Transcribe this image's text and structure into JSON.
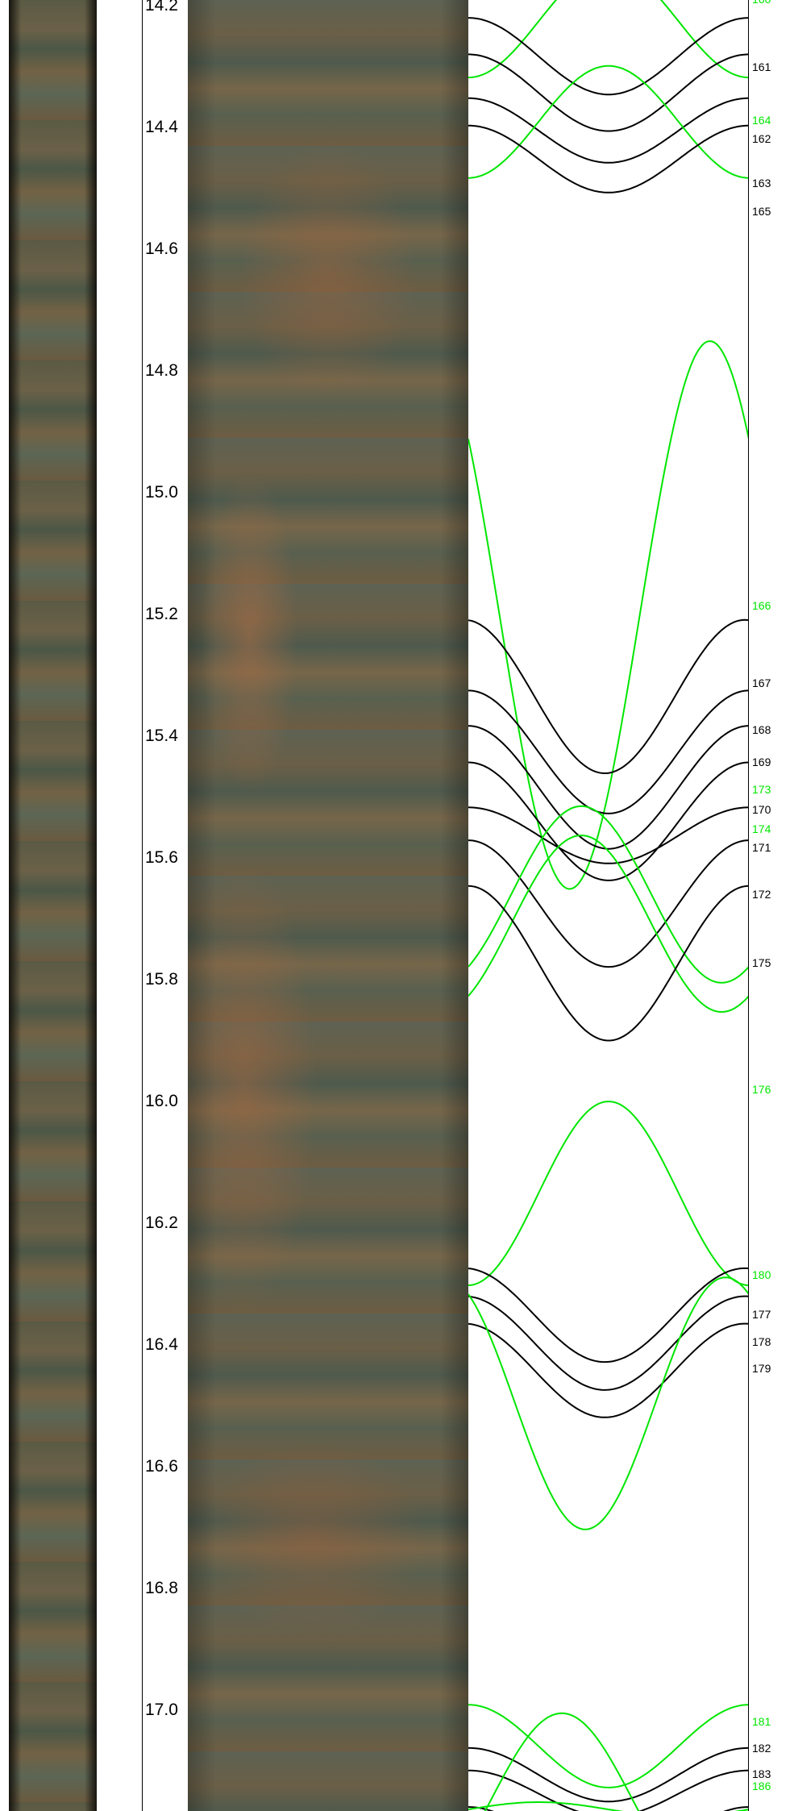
{
  "depth_axis": {
    "ticks": [
      "14.2",
      "14.4",
      "14.6",
      "14.8",
      "15.0",
      "15.2",
      "15.4",
      "15.6",
      "15.8",
      "16.0",
      "16.2",
      "16.4",
      "16.6",
      "16.8",
      "17.0"
    ]
  },
  "colors": {
    "black_plane": "#000000",
    "green_plane": "#00e600"
  },
  "core_images": [
    {
      "name": "unrolled-core-scan-narrow"
    },
    {
      "name": "unrolled-core-scan-wide"
    }
  ],
  "chart_data": {
    "type": "line",
    "x": {
      "label": "",
      "range": [
        0,
        360
      ]
    },
    "y": {
      "label": "",
      "unit": "m",
      "range": [
        14.2,
        17.16
      ],
      "inverted": true
    },
    "planes": [
      {
        "id": "160",
        "color": "green",
        "depth": 14.226,
        "amplitude": 0.092,
        "phase": 0
      },
      {
        "id": "161",
        "color": "black",
        "depth": 14.283,
        "amplitude": 0.063,
        "phase": 180
      },
      {
        "id": "162",
        "color": "black",
        "depth": 14.343,
        "amplitude": 0.063,
        "phase": 180
      },
      {
        "id": "163",
        "color": "black",
        "depth": 14.405,
        "amplitude": 0.053,
        "phase": 180
      },
      {
        "id": "164",
        "color": "green",
        "depth": 14.391,
        "amplitude": 0.092,
        "phase": 0
      },
      {
        "id": "165",
        "color": "black",
        "depth": 14.452,
        "amplitude": 0.055,
        "phase": 180
      },
      {
        "id": "166",
        "color": "green",
        "depth": 15.201,
        "amplitude": 0.45,
        "phase": 230
      },
      {
        "id": "167",
        "color": "black",
        "depth": 15.335,
        "amplitude": 0.126,
        "phase": 185
      },
      {
        "id": "168",
        "color": "black",
        "depth": 15.426,
        "amplitude": 0.101,
        "phase": 180
      },
      {
        "id": "169",
        "color": "black",
        "depth": 15.484,
        "amplitude": 0.101,
        "phase": 180
      },
      {
        "id": "170",
        "color": "black",
        "depth": 15.54,
        "amplitude": 0.097,
        "phase": 180
      },
      {
        "id": "171",
        "color": "black",
        "depth": 15.563,
        "amplitude": 0.046,
        "phase": 180
      },
      {
        "id": "172",
        "color": "black",
        "depth": 15.675,
        "amplitude": 0.104,
        "phase": 180
      },
      {
        "id": "173",
        "color": "green",
        "depth": 15.66,
        "amplitude": 0.145,
        "phase": 35
      },
      {
        "id": "174",
        "color": "green",
        "depth": 15.708,
        "amplitude": 0.145,
        "phase": 35
      },
      {
        "id": "175",
        "color": "black",
        "depth": 15.773,
        "amplitude": 0.127,
        "phase": 180
      },
      {
        "id": "176",
        "color": "green",
        "depth": 16.151,
        "amplitude": 0.151,
        "phase": 0
      },
      {
        "id": "177",
        "color": "black",
        "depth": 16.351,
        "amplitude": 0.077,
        "phase": 185
      },
      {
        "id": "178",
        "color": "black",
        "depth": 16.397,
        "amplitude": 0.077,
        "phase": 185
      },
      {
        "id": "179",
        "color": "black",
        "depth": 16.442,
        "amplitude": 0.077,
        "phase": 185
      },
      {
        "id": "180",
        "color": "green",
        "depth": 16.496,
        "amplitude": 0.207,
        "phase": 210
      },
      {
        "id": "181",
        "color": "green",
        "depth": 17.059,
        "amplitude": 0.068,
        "phase": 180
      },
      {
        "id": "182",
        "color": "black",
        "depth": 17.106,
        "amplitude": 0.044,
        "phase": 180
      },
      {
        "id": "183",
        "color": "black",
        "depth": 17.137,
        "amplitude": 0.038,
        "phase": 180
      },
      {
        "id": "184",
        "color": "black",
        "depth": 17.209,
        "amplitude": 0.05,
        "phase": 180
      },
      {
        "id": "185",
        "color": "green",
        "depth": 17.145,
        "amplitude": 0.14,
        "phase": 60
      },
      {
        "id": "186",
        "color": "green",
        "depth": 17.163,
        "amplitude": 0.012,
        "phase": 90
      }
    ],
    "labels": [
      {
        "text": "160",
        "color": "green",
        "depth": 14.19
      },
      {
        "text": "161",
        "color": "black",
        "depth": 14.3
      },
      {
        "text": "164",
        "color": "green",
        "depth": 14.388
      },
      {
        "text": "162",
        "color": "black",
        "depth": 14.418
      },
      {
        "text": "163",
        "color": "black",
        "depth": 14.492
      },
      {
        "text": "165",
        "color": "black",
        "depth": 14.538
      },
      {
        "text": "166",
        "color": "green",
        "depth": 15.185
      },
      {
        "text": "167",
        "color": "black",
        "depth": 15.313
      },
      {
        "text": "168",
        "color": "black",
        "depth": 15.39
      },
      {
        "text": "169",
        "color": "black",
        "depth": 15.443
      },
      {
        "text": "173",
        "color": "green",
        "depth": 15.488
      },
      {
        "text": "170",
        "color": "black",
        "depth": 15.52
      },
      {
        "text": "174",
        "color": "green",
        "depth": 15.552
      },
      {
        "text": "171",
        "color": "black",
        "depth": 15.583
      },
      {
        "text": "172",
        "color": "black",
        "depth": 15.66
      },
      {
        "text": "175",
        "color": "black",
        "depth": 15.772
      },
      {
        "text": "176",
        "color": "green",
        "depth": 15.98
      },
      {
        "text": "180",
        "color": "green",
        "depth": 16.285
      },
      {
        "text": "177",
        "color": "black",
        "depth": 16.35
      },
      {
        "text": "178",
        "color": "black",
        "depth": 16.395
      },
      {
        "text": "179",
        "color": "black",
        "depth": 16.438
      },
      {
        "text": "181",
        "color": "green",
        "depth": 17.018
      },
      {
        "text": "182",
        "color": "black",
        "depth": 17.062
      },
      {
        "text": "183",
        "color": "black",
        "depth": 17.104
      },
      {
        "text": "186",
        "color": "green",
        "depth": 17.125
      }
    ]
  }
}
